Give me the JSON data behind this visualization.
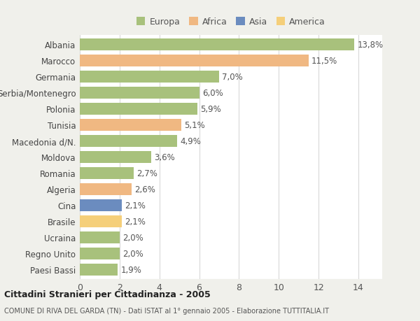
{
  "countries": [
    "Albania",
    "Marocco",
    "Germania",
    "Serbia/Montenegro",
    "Polonia",
    "Tunisia",
    "Macedonia d/N.",
    "Moldova",
    "Romania",
    "Algeria",
    "Cina",
    "Brasile",
    "Ucraina",
    "Regno Unito",
    "Paesi Bassi"
  ],
  "values": [
    13.8,
    11.5,
    7.0,
    6.0,
    5.9,
    5.1,
    4.9,
    3.6,
    2.7,
    2.6,
    2.1,
    2.1,
    2.0,
    2.0,
    1.9
  ],
  "labels": [
    "13,8%",
    "11,5%",
    "7,0%",
    "6,0%",
    "5,9%",
    "5,1%",
    "4,9%",
    "3,6%",
    "2,7%",
    "2,6%",
    "2,1%",
    "2,1%",
    "2,0%",
    "2,0%",
    "1,9%"
  ],
  "colors": [
    "#a8c17c",
    "#f0b882",
    "#a8c17c",
    "#a8c17c",
    "#a8c17c",
    "#f0b882",
    "#a8c17c",
    "#a8c17c",
    "#a8c17c",
    "#f0b882",
    "#6b8cbf",
    "#f5cf7a",
    "#a8c17c",
    "#a8c17c",
    "#a8c17c"
  ],
  "legend_labels": [
    "Europa",
    "Africa",
    "Asia",
    "America"
  ],
  "legend_colors": [
    "#a8c17c",
    "#f0b882",
    "#6b8cbf",
    "#f5cf7a"
  ],
  "title": "Cittadini Stranieri per Cittadinanza - 2005",
  "subtitle": "COMUNE DI RIVA DEL GARDA (TN) - Dati ISTAT al 1° gennaio 2005 - Elaborazione TUTTITALIA.IT",
  "xlim": [
    0,
    15.2
  ],
  "xticks": [
    0,
    2,
    4,
    6,
    8,
    10,
    12,
    14
  ],
  "background_color": "#f0f0eb",
  "plot_bg_color": "#ffffff",
  "grid_color": "#d8d8d8",
  "bar_height": 0.72,
  "label_fontsize": 8.5,
  "ytick_fontsize": 8.5,
  "xtick_fontsize": 9
}
